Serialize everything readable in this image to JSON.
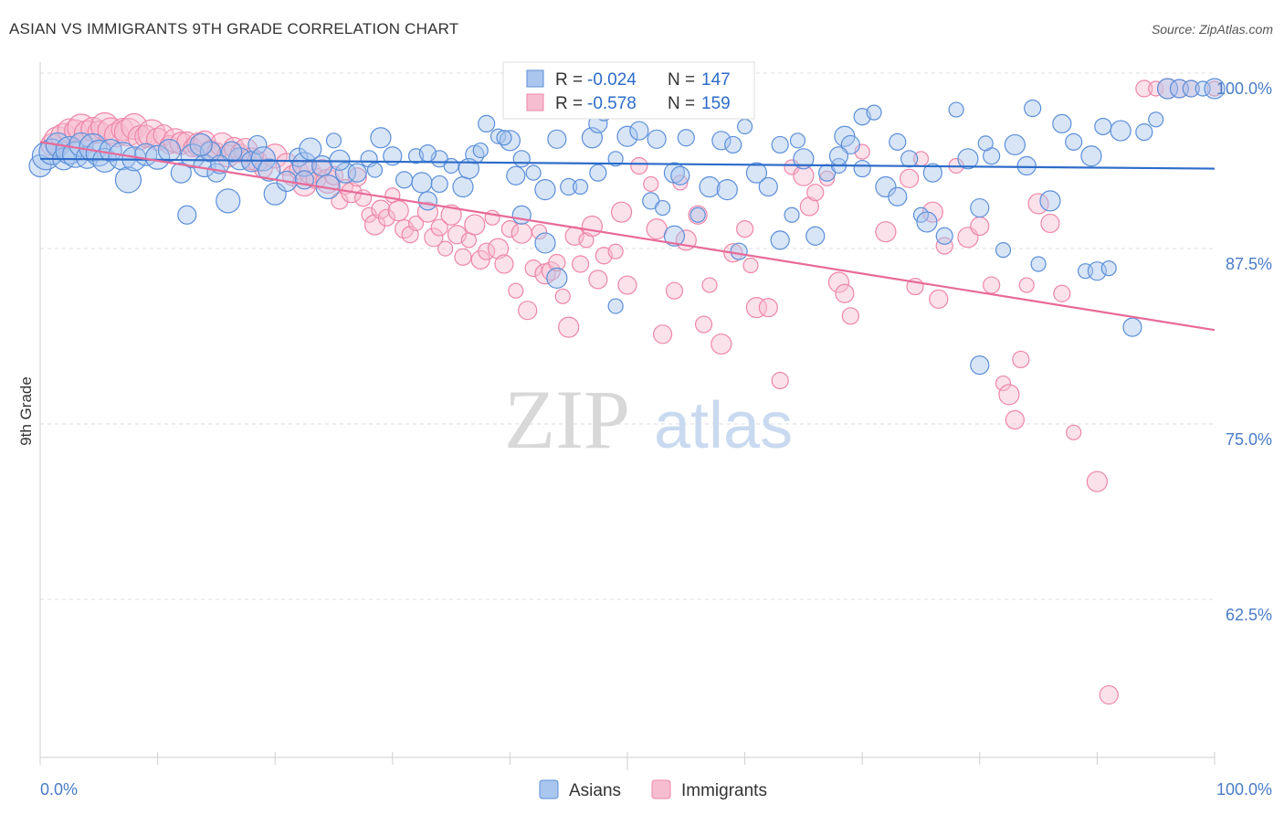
{
  "title": "ASIAN VS IMMIGRANTS 9TH GRADE CORRELATION CHART",
  "source": "Source: ZipAtlas.com",
  "watermark": {
    "zip": "ZIP",
    "atlas": "atlas"
  },
  "legend_top": [
    {
      "r_label": "R =",
      "r_value": "-0.024",
      "n_label": "N =",
      "n_value": "147"
    },
    {
      "r_label": "R =",
      "r_value": "-0.578",
      "n_label": "N =",
      "n_value": "159"
    }
  ],
  "legend_bottom": [
    "Asians",
    "Immigrants"
  ],
  "chart_data": {
    "type": "scatter",
    "title": "ASIAN VS IMMIGRANTS 9TH GRADE CORRELATION CHART",
    "xlabel": "",
    "ylabel": "9th Grade",
    "xlim": [
      0,
      100
    ],
    "ylim": [
      52,
      102
    ],
    "x_tick_labels": [
      "0.0%",
      "100.0%"
    ],
    "y_ticks": [
      100,
      87.5,
      75,
      62.5
    ],
    "y_tick_labels": [
      "100.0%",
      "87.5%",
      "75.0%",
      "62.5%"
    ],
    "grid": "horizontal dashed",
    "legend_placement": "top-center",
    "colors": {
      "Asians": "#5b8fd9",
      "Immigrants": "#ee86a8"
    },
    "series": [
      {
        "name": "Asians",
        "r": -0.024,
        "n": 147,
        "trend": {
          "x": [
            0,
            100
          ],
          "y": [
            95.0,
            94.3
          ]
        },
        "points": [
          [
            0,
            94.5
          ],
          [
            0.5,
            95.2
          ],
          [
            1,
            95.5
          ],
          [
            1.5,
            96
          ],
          [
            2,
            95
          ],
          [
            2.5,
            95.6
          ],
          [
            3,
            95.3
          ],
          [
            3.5,
            96
          ],
          [
            4,
            95.1
          ],
          [
            4.5,
            95.8
          ],
          [
            5,
            95.4
          ],
          [
            5.5,
            94.9
          ],
          [
            6,
            95.6
          ],
          [
            7,
            95.2
          ],
          [
            7.5,
            93.5
          ],
          [
            8,
            95
          ],
          [
            9,
            95.3
          ],
          [
            10,
            95.1
          ],
          [
            11,
            95.6
          ],
          [
            12,
            94
          ],
          [
            12.5,
            91
          ],
          [
            13,
            95.2
          ],
          [
            14,
            94.5
          ],
          [
            14.5,
            95.5
          ],
          [
            15,
            94
          ],
          [
            16,
            92
          ],
          [
            17,
            95
          ],
          [
            18,
            94.8
          ],
          [
            18.5,
            96
          ],
          [
            19,
            95
          ],
          [
            20,
            92.5
          ],
          [
            21,
            93.4
          ],
          [
            22,
            95.1
          ],
          [
            22.5,
            94.6
          ],
          [
            23,
            95.7
          ],
          [
            24,
            94.5
          ],
          [
            25,
            96.3
          ],
          [
            26,
            94
          ],
          [
            27,
            94
          ],
          [
            28,
            95
          ],
          [
            28.5,
            94.2
          ],
          [
            29,
            96.5
          ],
          [
            30,
            95.2
          ],
          [
            31,
            93.5
          ],
          [
            32,
            95.2
          ],
          [
            32.5,
            93.3
          ],
          [
            33,
            92
          ],
          [
            34,
            95
          ],
          [
            35,
            94.5
          ],
          [
            36,
            93
          ],
          [
            37,
            95.3
          ],
          [
            38,
            97.5
          ],
          [
            39,
            96.6
          ],
          [
            40,
            96.3
          ],
          [
            40.5,
            93.8
          ],
          [
            41,
            95
          ],
          [
            42,
            94
          ],
          [
            43,
            92.8
          ],
          [
            44,
            96.4
          ],
          [
            45,
            93
          ],
          [
            46,
            93
          ],
          [
            47,
            96.5
          ],
          [
            47.5,
            97.5
          ],
          [
            48,
            98.3
          ],
          [
            49,
            95
          ],
          [
            50,
            96.6
          ],
          [
            51,
            97
          ],
          [
            52,
            92
          ],
          [
            53,
            91.5
          ],
          [
            54,
            94
          ],
          [
            54.5,
            93.8
          ],
          [
            55,
            96.5
          ],
          [
            56,
            91
          ],
          [
            57,
            93
          ],
          [
            58,
            96.3
          ],
          [
            59,
            96
          ],
          [
            60,
            97.3
          ],
          [
            61,
            94
          ],
          [
            62,
            93
          ],
          [
            63,
            96
          ],
          [
            64,
            91
          ],
          [
            65,
            95
          ],
          [
            66,
            89.5
          ],
          [
            67,
            94
          ],
          [
            68,
            94.5
          ],
          [
            68.5,
            96.6
          ],
          [
            69,
            96
          ],
          [
            70,
            98
          ],
          [
            71,
            98.3
          ],
          [
            72,
            93
          ],
          [
            73,
            92.3
          ],
          [
            74,
            95
          ],
          [
            75,
            91
          ],
          [
            75.5,
            90.5
          ],
          [
            76,
            94
          ],
          [
            77,
            89.5
          ],
          [
            78,
            98.5
          ],
          [
            79,
            95
          ],
          [
            80,
            91.5
          ],
          [
            81,
            95.2
          ],
          [
            82,
            88.5
          ],
          [
            83,
            96
          ],
          [
            84,
            94.5
          ],
          [
            84.5,
            98.6
          ],
          [
            85,
            87.5
          ],
          [
            86,
            92
          ],
          [
            87,
            97.5
          ],
          [
            88,
            96.2
          ],
          [
            89,
            87
          ],
          [
            89.5,
            95.2
          ],
          [
            90,
            87
          ],
          [
            90.5,
            97.3
          ],
          [
            91,
            87.2
          ],
          [
            92,
            97
          ],
          [
            93,
            83
          ],
          [
            94,
            96.9
          ],
          [
            95,
            97.8
          ],
          [
            96,
            100
          ],
          [
            97,
            100
          ],
          [
            98,
            100
          ],
          [
            99,
            100
          ],
          [
            100,
            100
          ],
          [
            68,
            95.2
          ],
          [
            59.5,
            88.4
          ],
          [
            49,
            84.5
          ],
          [
            44,
            86.5
          ],
          [
            80,
            80.3
          ],
          [
            70,
            94.3
          ],
          [
            64.5,
            96.3
          ],
          [
            54,
            89.5
          ],
          [
            63,
            89.2
          ],
          [
            73,
            96.2
          ],
          [
            80.5,
            96.1
          ],
          [
            43,
            89
          ],
          [
            13.7,
            96
          ],
          [
            16.3,
            95.5
          ],
          [
            22.5,
            93.5
          ],
          [
            36.5,
            94.3
          ],
          [
            41,
            91
          ],
          [
            34,
            93.2
          ],
          [
            37.5,
            95.6
          ],
          [
            24.5,
            93
          ],
          [
            52.5,
            96.4
          ],
          [
            47.5,
            94
          ],
          [
            15.3,
            94.6
          ],
          [
            25.5,
            94.9
          ],
          [
            19.5,
            94.2
          ],
          [
            33,
            95.4
          ],
          [
            39.5,
            96.5
          ],
          [
            58.5,
            92.8
          ]
        ]
      },
      {
        "name": "Immigrants",
        "r": -0.578,
        "n": 159,
        "trend": {
          "x": [
            0,
            100
          ],
          "y": [
            96.2,
            82.8
          ]
        },
        "points": [
          [
            1,
            96
          ],
          [
            1.5,
            96.3
          ],
          [
            2,
            96.6
          ],
          [
            2.5,
            97
          ],
          [
            3,
            97
          ],
          [
            3.5,
            97.2
          ],
          [
            4,
            96.8
          ],
          [
            4.5,
            97.1
          ],
          [
            5,
            96.9
          ],
          [
            5.5,
            97.3
          ],
          [
            6,
            97
          ],
          [
            6.5,
            96.7
          ],
          [
            7,
            97.1
          ],
          [
            7.5,
            96.9
          ],
          [
            8,
            97.3
          ],
          [
            8.5,
            96.5
          ],
          [
            9,
            96.6
          ],
          [
            9.5,
            96.8
          ],
          [
            10,
            96.4
          ],
          [
            10.5,
            96.7
          ],
          [
            11,
            96
          ],
          [
            11.5,
            96.3
          ],
          [
            12,
            96.1
          ],
          [
            12.5,
            96.2
          ],
          [
            13,
            95.8
          ],
          [
            13.5,
            96
          ],
          [
            14,
            96.2
          ],
          [
            14.5,
            95.6
          ],
          [
            15,
            95.5
          ],
          [
            15.5,
            96
          ],
          [
            16,
            95.2
          ],
          [
            16.5,
            95.8
          ],
          [
            17,
            95.4
          ],
          [
            17.5,
            95.6
          ],
          [
            18,
            95
          ],
          [
            18.5,
            94.8
          ],
          [
            19,
            94.3
          ],
          [
            20,
            95.2
          ],
          [
            21,
            94.6
          ],
          [
            21.5,
            93.8
          ],
          [
            22,
            94.2
          ],
          [
            22.5,
            93.2
          ],
          [
            23,
            94
          ],
          [
            23.5,
            93.6
          ],
          [
            24,
            94.3
          ],
          [
            24.5,
            93.4
          ],
          [
            25,
            93.8
          ],
          [
            25.5,
            92
          ],
          [
            26,
            93
          ],
          [
            26.5,
            92.6
          ],
          [
            27,
            93.7
          ],
          [
            27.5,
            92.2
          ],
          [
            28,
            91
          ],
          [
            28.5,
            90.3
          ],
          [
            29,
            91.4
          ],
          [
            29.5,
            90.8
          ],
          [
            30,
            92.4
          ],
          [
            30.5,
            91.3
          ],
          [
            31,
            90
          ],
          [
            31.5,
            89.6
          ],
          [
            32,
            90.4
          ],
          [
            33,
            91.2
          ],
          [
            33.5,
            89.4
          ],
          [
            34,
            90.1
          ],
          [
            34.5,
            88.6
          ],
          [
            35,
            91
          ],
          [
            35.5,
            89.6
          ],
          [
            36,
            88
          ],
          [
            36.5,
            89.2
          ],
          [
            37,
            90.3
          ],
          [
            37.5,
            87.8
          ],
          [
            38,
            88.4
          ],
          [
            38.5,
            90.8
          ],
          [
            39,
            88.6
          ],
          [
            39.5,
            87.5
          ],
          [
            40,
            90
          ],
          [
            40.5,
            85.6
          ],
          [
            41,
            89.7
          ],
          [
            41.5,
            84.2
          ],
          [
            42,
            87.2
          ],
          [
            42.5,
            89.8
          ],
          [
            43,
            86.8
          ],
          [
            43.5,
            87
          ],
          [
            44,
            87.6
          ],
          [
            44.5,
            85.2
          ],
          [
            45,
            83
          ],
          [
            45.5,
            89.5
          ],
          [
            46,
            87.5
          ],
          [
            46.5,
            89.2
          ],
          [
            47,
            90.2
          ],
          [
            47.5,
            86.4
          ],
          [
            48,
            88.1
          ],
          [
            49,
            88.4
          ],
          [
            49.5,
            91.2
          ],
          [
            50,
            86
          ],
          [
            51,
            94.5
          ],
          [
            52,
            93.2
          ],
          [
            52.5,
            90
          ],
          [
            53,
            82.5
          ],
          [
            54,
            85.6
          ],
          [
            54.5,
            93.3
          ],
          [
            55,
            89.2
          ],
          [
            56,
            91
          ],
          [
            56.5,
            83.2
          ],
          [
            57,
            86
          ],
          [
            58,
            81.8
          ],
          [
            59,
            88.3
          ],
          [
            60,
            90
          ],
          [
            60.5,
            87.4
          ],
          [
            61,
            84.4
          ],
          [
            62,
            84.4
          ],
          [
            63,
            79.2
          ],
          [
            64,
            94.4
          ],
          [
            65,
            93.8
          ],
          [
            65.5,
            91.6
          ],
          [
            66,
            92.6
          ],
          [
            67,
            93.6
          ],
          [
            68,
            86.2
          ],
          [
            68.5,
            85.4
          ],
          [
            69,
            83.8
          ],
          [
            70,
            95.5
          ],
          [
            72,
            89.8
          ],
          [
            74,
            93.6
          ],
          [
            74.5,
            85.9
          ],
          [
            75,
            95
          ],
          [
            76,
            91.2
          ],
          [
            76.5,
            85
          ],
          [
            77,
            88.8
          ],
          [
            78,
            94.5
          ],
          [
            79,
            89.4
          ],
          [
            80,
            90.2
          ],
          [
            81,
            86
          ],
          [
            82,
            79
          ],
          [
            82.5,
            78.2
          ],
          [
            83,
            76.4
          ],
          [
            83.5,
            80.7
          ],
          [
            84,
            86
          ],
          [
            85,
            91.8
          ],
          [
            86,
            90.4
          ],
          [
            87,
            85.4
          ],
          [
            88,
            75.5
          ],
          [
            90,
            72
          ],
          [
            91,
            56.8
          ],
          [
            94,
            100
          ],
          [
            95,
            100
          ],
          [
            96,
            100
          ],
          [
            97,
            100
          ],
          [
            98,
            100
          ],
          [
            100,
            100
          ]
        ]
      }
    ]
  }
}
